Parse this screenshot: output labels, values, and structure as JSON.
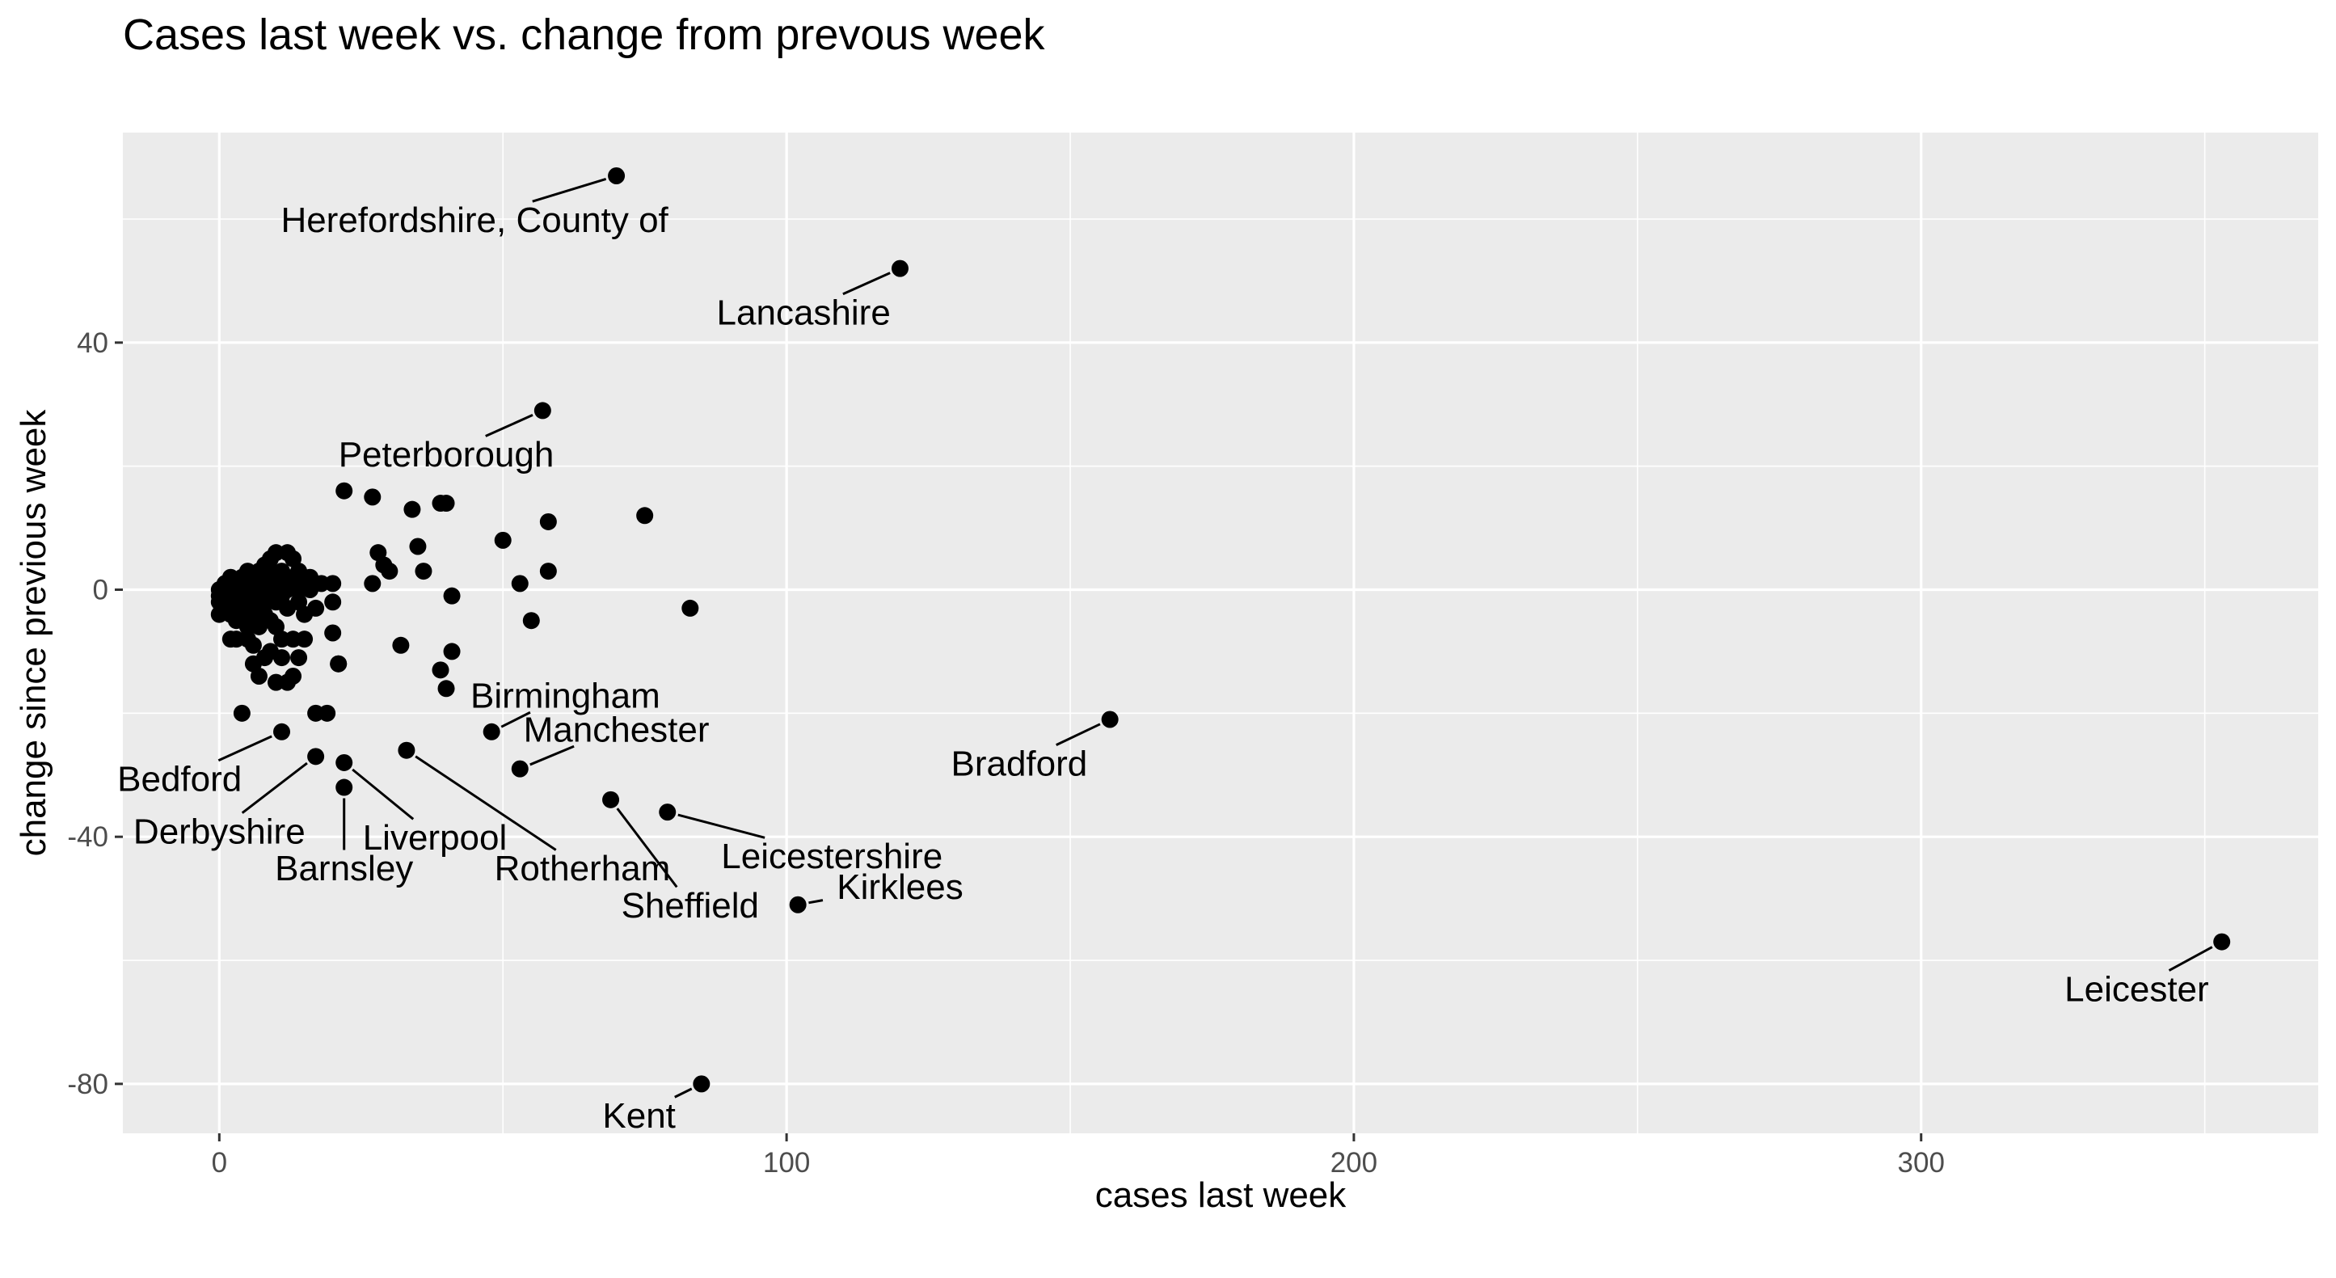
{
  "chart_data": {
    "type": "scatter",
    "title": "Cases last week vs. change from prevous week",
    "xlabel": "cases last week",
    "ylabel": "change since previous week",
    "xlim": [
      -17,
      370
    ],
    "ylim": [
      -88,
      74
    ],
    "xticks": [
      0,
      100,
      200,
      300
    ],
    "xtick_labels": [
      "0",
      "100",
      "200",
      "300"
    ],
    "xminor": [
      50,
      150,
      250,
      350
    ],
    "yticks": [
      40,
      0,
      -40,
      -80
    ],
    "ytick_labels": [
      "40",
      "0",
      "-40",
      "-80"
    ],
    "yminor": [
      60,
      20,
      -20,
      -60
    ],
    "grid": true,
    "legend": "none",
    "colors": {
      "panel": "#ebebeb",
      "grid": "#ffffff",
      "point": "#000000",
      "tick_text": "#4d4d4d"
    },
    "labeled_points": [
      {
        "name": "Herefordshire, County of",
        "x": 70,
        "y": 67,
        "lx": 45,
        "ly": 60
      },
      {
        "name": "Lancashire",
        "x": 120,
        "y": 52,
        "lx": 103,
        "ly": 45
      },
      {
        "name": "Peterborough",
        "x": 57,
        "y": 29,
        "lx": 40,
        "ly": 22
      },
      {
        "name": "Birmingham",
        "x": 48,
        "y": -23,
        "lx": 61,
        "ly": -17
      },
      {
        "name": "Manchester",
        "x": 53,
        "y": -29,
        "lx": 70,
        "ly": -22.5
      },
      {
        "name": "Bedford",
        "x": 11,
        "y": -23,
        "lx": -7,
        "ly": -30.5
      },
      {
        "name": "Derbyshire",
        "x": 17,
        "y": -27,
        "lx": 0,
        "ly": -39
      },
      {
        "name": "Liverpool",
        "x": 22,
        "y": -28,
        "lx": 38,
        "ly": -40
      },
      {
        "name": "Barnsley",
        "x": 22,
        "y": -32,
        "lx": 22,
        "ly": -45
      },
      {
        "name": "Rotherham",
        "x": 33,
        "y": -26,
        "lx": 64,
        "ly": -45
      },
      {
        "name": "Leicestershire",
        "x": 79,
        "y": -36,
        "lx": 108,
        "ly": -43
      },
      {
        "name": "Sheffield",
        "x": 69,
        "y": -34,
        "lx": 83,
        "ly": -51
      },
      {
        "name": "Kirklees",
        "x": 102,
        "y": -51,
        "lx": 120,
        "ly": -48
      },
      {
        "name": "Bradford",
        "x": 157,
        "y": -21,
        "lx": 141,
        "ly": -28
      },
      {
        "name": "Leicester",
        "x": 353,
        "y": -57,
        "lx": 338,
        "ly": -64.5
      },
      {
        "name": "Kent",
        "x": 85,
        "y": -80,
        "lx": 74,
        "ly": -85
      }
    ],
    "points": [
      [
        0,
        0
      ],
      [
        0,
        -1
      ],
      [
        0,
        -2
      ],
      [
        0,
        -4
      ],
      [
        1,
        1
      ],
      [
        1,
        -1
      ],
      [
        1,
        -3
      ],
      [
        2,
        0
      ],
      [
        2,
        2
      ],
      [
        2,
        -2
      ],
      [
        2,
        -4
      ],
      [
        2,
        -8
      ],
      [
        3,
        1
      ],
      [
        3,
        -1
      ],
      [
        3,
        -3
      ],
      [
        3,
        -5
      ],
      [
        3,
        -8
      ],
      [
        4,
        0
      ],
      [
        4,
        2
      ],
      [
        4,
        -2
      ],
      [
        4,
        -4
      ],
      [
        4,
        -20
      ],
      [
        5,
        1
      ],
      [
        5,
        3
      ],
      [
        5,
        -1
      ],
      [
        5,
        -3
      ],
      [
        5,
        -6
      ],
      [
        5,
        -8
      ],
      [
        6,
        0
      ],
      [
        6,
        2
      ],
      [
        6,
        -2
      ],
      [
        6,
        -5
      ],
      [
        6,
        -9
      ],
      [
        6,
        -12
      ],
      [
        7,
        1
      ],
      [
        7,
        3
      ],
      [
        7,
        -1
      ],
      [
        7,
        -3
      ],
      [
        7,
        -6
      ],
      [
        7,
        -14
      ],
      [
        8,
        0
      ],
      [
        8,
        2
      ],
      [
        8,
        4
      ],
      [
        8,
        -2
      ],
      [
        8,
        -4
      ],
      [
        8,
        -11
      ],
      [
        9,
        1
      ],
      [
        9,
        3
      ],
      [
        9,
        5
      ],
      [
        9,
        -1
      ],
      [
        9,
        -5
      ],
      [
        9,
        -10
      ],
      [
        10,
        0
      ],
      [
        10,
        2
      ],
      [
        10,
        6
      ],
      [
        10,
        -2
      ],
      [
        10,
        -6
      ],
      [
        10,
        -15
      ],
      [
        11,
        1
      ],
      [
        11,
        3
      ],
      [
        11,
        -1
      ],
      [
        11,
        -8
      ],
      [
        11,
        -11
      ],
      [
        12,
        0
      ],
      [
        12,
        2
      ],
      [
        12,
        6
      ],
      [
        12,
        -3
      ],
      [
        12,
        -15
      ],
      [
        13,
        1
      ],
      [
        13,
        5
      ],
      [
        13,
        -8
      ],
      [
        13,
        -14
      ],
      [
        14,
        0
      ],
      [
        14,
        3
      ],
      [
        14,
        -2
      ],
      [
        14,
        -11
      ],
      [
        15,
        1
      ],
      [
        15,
        -4
      ],
      [
        15,
        -8
      ],
      [
        16,
        2
      ],
      [
        16,
        0
      ],
      [
        17,
        -3
      ],
      [
        17,
        -20
      ],
      [
        18,
        1
      ],
      [
        19,
        -20
      ],
      [
        20,
        1
      ],
      [
        20,
        -2
      ],
      [
        20,
        -7
      ],
      [
        21,
        -12
      ],
      [
        21,
        -12
      ],
      [
        22,
        16
      ],
      [
        27,
        15
      ],
      [
        27,
        1
      ],
      [
        28,
        6
      ],
      [
        29,
        4
      ],
      [
        30,
        3
      ],
      [
        32,
        -9
      ],
      [
        34,
        13
      ],
      [
        35,
        7
      ],
      [
        36,
        3
      ],
      [
        39,
        -13
      ],
      [
        39,
        14
      ],
      [
        40,
        14
      ],
      [
        40,
        -16
      ],
      [
        41,
        -1
      ],
      [
        41,
        -10
      ],
      [
        50,
        8
      ],
      [
        53,
        1
      ],
      [
        55,
        -5
      ],
      [
        58,
        11
      ],
      [
        58,
        3
      ],
      [
        75,
        12
      ],
      [
        83,
        -3
      ]
    ]
  }
}
